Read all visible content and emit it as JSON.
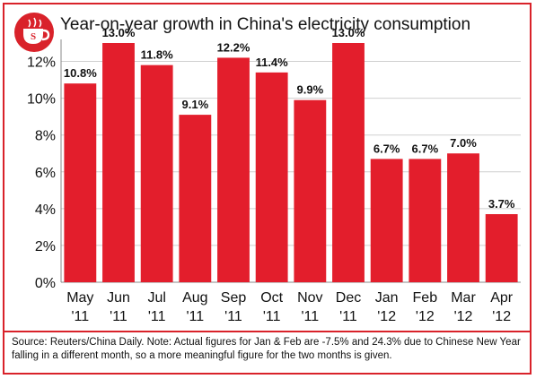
{
  "title": "Year-on-year growth in China's electricity consumption",
  "source": "Source: Reuters/China Daily. Note: Actual figures for Jan & Feb are -7.5% and 24.3% due to Chinese New Year falling in a different month, so a more meaningful figure for the two months is given.",
  "colors": {
    "accent": "#d9222a",
    "bar": "#e31e2c",
    "grid": "#cfcfcf"
  },
  "logo": {
    "icon": "coffee-cup-icon",
    "letter": "S"
  },
  "chart_data": {
    "type": "bar",
    "title": "Year-on-year growth in China's electricity consumption",
    "categories": [
      [
        "May",
        "'11"
      ],
      [
        "Jun",
        "'11"
      ],
      [
        "Jul",
        "'11"
      ],
      [
        "Aug",
        "'11"
      ],
      [
        "Sep",
        "'11"
      ],
      [
        "Oct",
        "'11"
      ],
      [
        "Nov",
        "'11"
      ],
      [
        "Dec",
        "'11"
      ],
      [
        "Jan",
        "'12"
      ],
      [
        "Feb",
        "'12"
      ],
      [
        "Mar",
        "'12"
      ],
      [
        "Apr",
        "'12"
      ]
    ],
    "values": [
      10.8,
      13.0,
      11.8,
      9.1,
      12.2,
      11.4,
      9.9,
      13.0,
      6.7,
      6.7,
      7.0,
      3.7
    ],
    "data_labels": [
      "10.8%",
      "13.0%",
      "11.8%",
      "9.1%",
      "12.2%",
      "11.4%",
      "9.9%",
      "13.0%",
      "6.7%",
      "6.7%",
      "7.0%",
      "3.7%"
    ],
    "yticks": [
      0,
      2,
      4,
      6,
      8,
      10,
      12
    ],
    "ytick_labels": [
      "0%",
      "2%",
      "4%",
      "6%",
      "8%",
      "10%",
      "12%"
    ],
    "ylim": [
      0,
      13.0
    ],
    "grid": true,
    "xlabel": "",
    "ylabel": ""
  }
}
